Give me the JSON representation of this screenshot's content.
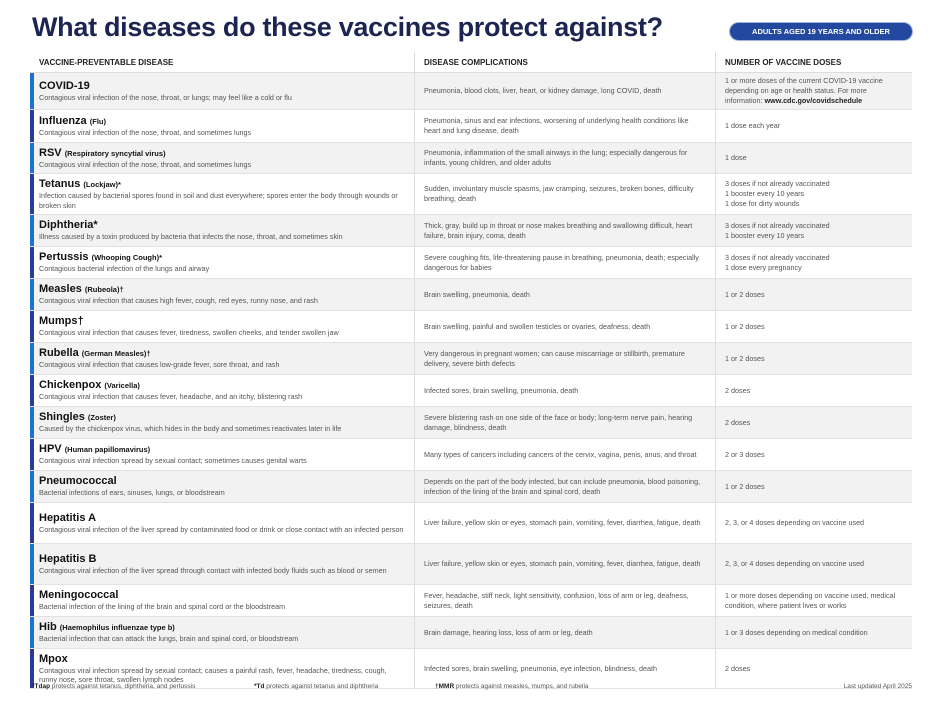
{
  "title": "What diseases do these vaccines protect against?",
  "badge": "ADULTS AGED 19 YEARS AND OLDER",
  "colors": {
    "title": "#1c2452",
    "badge": "#2348a0",
    "bar_light": "#1f72c9",
    "bar_dark": "#2a3a97"
  },
  "headers": [
    "VACCINE-PREVENTABLE DISEASE",
    "DISEASE COMPLICATIONS",
    "NUMBER OF VACCINE DOSES"
  ],
  "rows": [
    {
      "name": "COVID-19",
      "sub": "",
      "desc": "Contagious viral infection of the nose, throat, or lungs; may feel like a cold or flu",
      "complications": "Pneumonia, blood clots, liver, heart, or kidney damage, long COVID, death",
      "doses": "1 or more doses of the current COVID-19 vaccine depending on age or health status. For more information:",
      "doses_link": "www.cdc.gov/covidschedule"
    },
    {
      "name": "Influenza",
      "sub": "(Flu)",
      "desc": "Contagious viral infection of the nose, throat, and sometimes lungs",
      "complications": "Pneumonia, sinus and ear infections, worsening of underlying health conditions like heart and lung disease, death",
      "doses": "1 dose each year"
    },
    {
      "name": "RSV",
      "sub": "(Respiratory syncytial virus)",
      "desc": "Contagious viral infection of the nose, throat, and sometimes lungs",
      "complications": "Pneumonia, inflammation of the small airways in the lung; especially dangerous for infants, young children, and older adults",
      "doses": "1 dose"
    },
    {
      "name": "Tetanus",
      "sub": "(Lockjaw)*",
      "desc": "Infection caused by bacterial spores found in soil and dust everywhere; spores enter the body through wounds or broken skin",
      "complications": "Sudden, involuntary muscle spasms, jaw cramping, seizures, broken bones, difficulty breathing, death",
      "doses": "3 doses if not already vaccinated\n1 booster every 10 years\n1 dose for dirty wounds"
    },
    {
      "name": "Diphtheria*",
      "sub": "",
      "desc": "Illness caused by a toxin produced by bacteria that infects the nose, throat, and sometimes skin",
      "complications": "Thick, gray, build up in throat or nose makes breathing and swallowing difficult, heart failure, brain injury, coma, death",
      "doses": "3 doses if not already vaccinated\n1 booster every 10 years"
    },
    {
      "name": "Pertussis",
      "sub": "(Whooping Cough)*",
      "desc": "Contagious bacterial infection of the lungs and airway",
      "complications": "Severe coughing fits, life-threatening pause in breathing, pneumonia, death; especially dangerous for babies",
      "doses": "3 doses if not already vaccinated\n1 dose every pregnancy"
    },
    {
      "name": "Measles",
      "sub": "(Rubeola)†",
      "desc": "Contagious viral infection that causes high fever, cough, red eyes, runny nose, and rash",
      "complications": "Brain swelling, pneumonia, death",
      "doses": "1 or 2 doses"
    },
    {
      "name": "Mumps†",
      "sub": "",
      "desc": "Contagious viral infection that causes fever, tiredness, swollen cheeks, and tender swollen jaw",
      "complications": "Brain swelling, painful and swollen testicles or ovaries, deafness, death",
      "doses": "1 or 2 doses"
    },
    {
      "name": "Rubella",
      "sub": "(German Measles)†",
      "desc": "Contagious viral infection that causes low-grade fever, sore throat, and rash",
      "complications": "Very dangerous in pregnant women; can cause miscarriage or stillbirth, premature delivery, severe birth defects",
      "doses": "1 or 2 doses"
    },
    {
      "name": "Chickenpox",
      "sub": "(Varicella)",
      "desc": "Contagious viral infection that causes fever, headache, and an itchy, blistering rash",
      "complications": "Infected sores, brain swelling, pneumonia, death",
      "doses": "2 doses"
    },
    {
      "name": "Shingles",
      "sub": "(Zoster)",
      "desc": "Caused by the chickenpox virus, which hides in the body and sometimes reactivates later in life",
      "complications": "Severe blistering rash on one side of the face or body; long-term nerve pain, hearing damage, blindness, death",
      "doses": "2 doses"
    },
    {
      "name": "HPV",
      "sub": "(Human papillomavirus)",
      "desc": "Contagious viral infection spread by sexual contact; sometimes causes genital warts",
      "complications": "Many types of cancers including cancers of the cervix, vagina, penis, anus, and throat",
      "doses": "2 or 3 doses"
    },
    {
      "name": "Pneumococcal",
      "sub": "",
      "desc": "Bacterial infections of ears, sinuses, lungs, or bloodstream",
      "complications": "Depends on the part of the body infected, but can include pneumonia, blood poisoning, infection of the lining of the brain and spinal cord, death",
      "doses": "1 or 2 doses"
    },
    {
      "name": "Hepatitis A",
      "sub": "",
      "desc": "Contagious viral infection of the liver spread by contaminated food or drink or close contact with an infected person",
      "complications": "Liver failure, yellow skin or eyes, stomach pain, vomiting, fever, diarrhea, fatigue, death",
      "doses": "2, 3, or 4 doses depending on vaccine used"
    },
    {
      "name": "Hepatitis B",
      "sub": "",
      "desc": "Contagious viral infection of the liver spread through contact with infected body fluids such as blood or semen",
      "complications": "Liver failure, yellow skin or eyes, stomach pain, vomiting, fever, diarrhea, fatigue, death",
      "doses": "2, 3, or 4 doses depending on vaccine used"
    },
    {
      "name": "Meningococcal",
      "sub": "",
      "desc": "Bacterial infection of the lining of the brain and spinal cord or the bloodstream",
      "complications": "Fever, headache, stiff neck, light sensitivity, confusion, loss of arm or leg, deafness, seizures, death",
      "doses": "1 or more doses depending on vaccine used, medical condition, where patient lives or works"
    },
    {
      "name": "Hib",
      "sub": "(Haemophilus influenzae type b)",
      "desc": "Bacterial infection that can attack the lungs, brain and spinal cord, or bloodstream",
      "complications": "Brain damage, hearing loss, loss of arm or leg, death",
      "doses": "1 or 3 doses depending on medical condition"
    },
    {
      "name": "Mpox",
      "sub": "",
      "desc": "Contagious viral infection spread by sexual contact; causes a painful rash, fever, headache, tiredness, cough, runny nose, sore throat, swollen lymph nodes",
      "complications": "Infected sores, brain swelling, pneumonia, eye infection, blindness, death",
      "doses": "2 doses"
    }
  ],
  "footnotes": [
    {
      "mark": "*Tdap",
      "text": "protects against tetanus, diphtheria, and pertussis"
    },
    {
      "mark": "*Td",
      "text": "protects against tetanus and diphtheria"
    },
    {
      "mark": "†MMR",
      "text": "protects against measles, mumps, and rubella"
    }
  ],
  "last_updated": "Last updated April 2025"
}
